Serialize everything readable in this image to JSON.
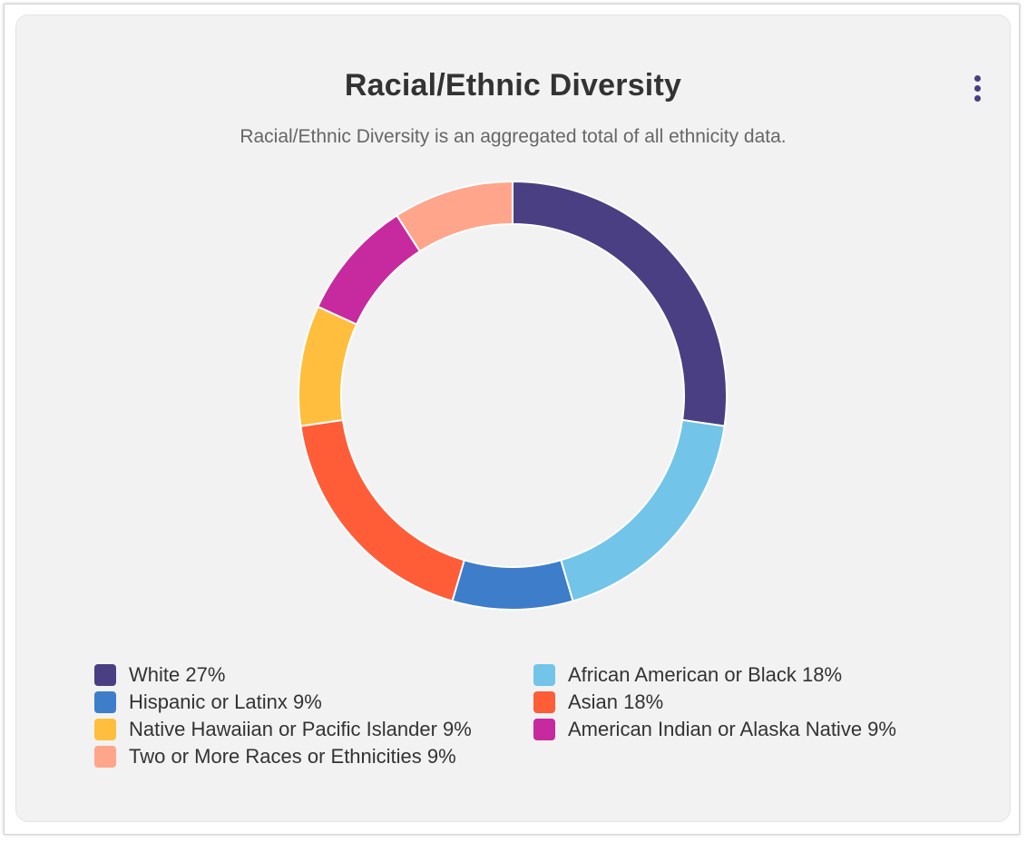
{
  "card": {
    "title": "Racial/Ethnic Diversity",
    "subtitle": "Racial/Ethnic Diversity is an aggregated total of all ethnicity data.",
    "menu_icon": "vertical-dots-icon"
  },
  "colors": {
    "background": "#f2f2f2",
    "menu": "#4a3f82"
  },
  "chart_data": {
    "type": "pie",
    "style": "donut",
    "title": "Racial/Ethnic Diversity",
    "categories": [
      "White",
      "African American or Black",
      "Hispanic or Latinx",
      "Asian",
      "Native Hawaiian or Pacific Islander",
      "American Indian or Alaska Native",
      "Two or More Races or Ethnicities"
    ],
    "values": [
      27,
      18,
      9,
      18,
      9,
      9,
      9
    ],
    "colors": [
      "#4a3f82",
      "#72c4e8",
      "#3d7dca",
      "#ff5c38",
      "#ffbe3d",
      "#c72a9e",
      "#ffa58c"
    ],
    "legend": {
      "placement": "bottom",
      "labels": [
        "White 27%",
        "African American or Black 18%",
        "Hispanic or Latinx 9%",
        "Asian 18%",
        "Native Hawaiian or Pacific Islander 9%",
        "American Indian or Alaska Native 9%",
        "Two or More Races or Ethnicities 9%"
      ]
    }
  }
}
